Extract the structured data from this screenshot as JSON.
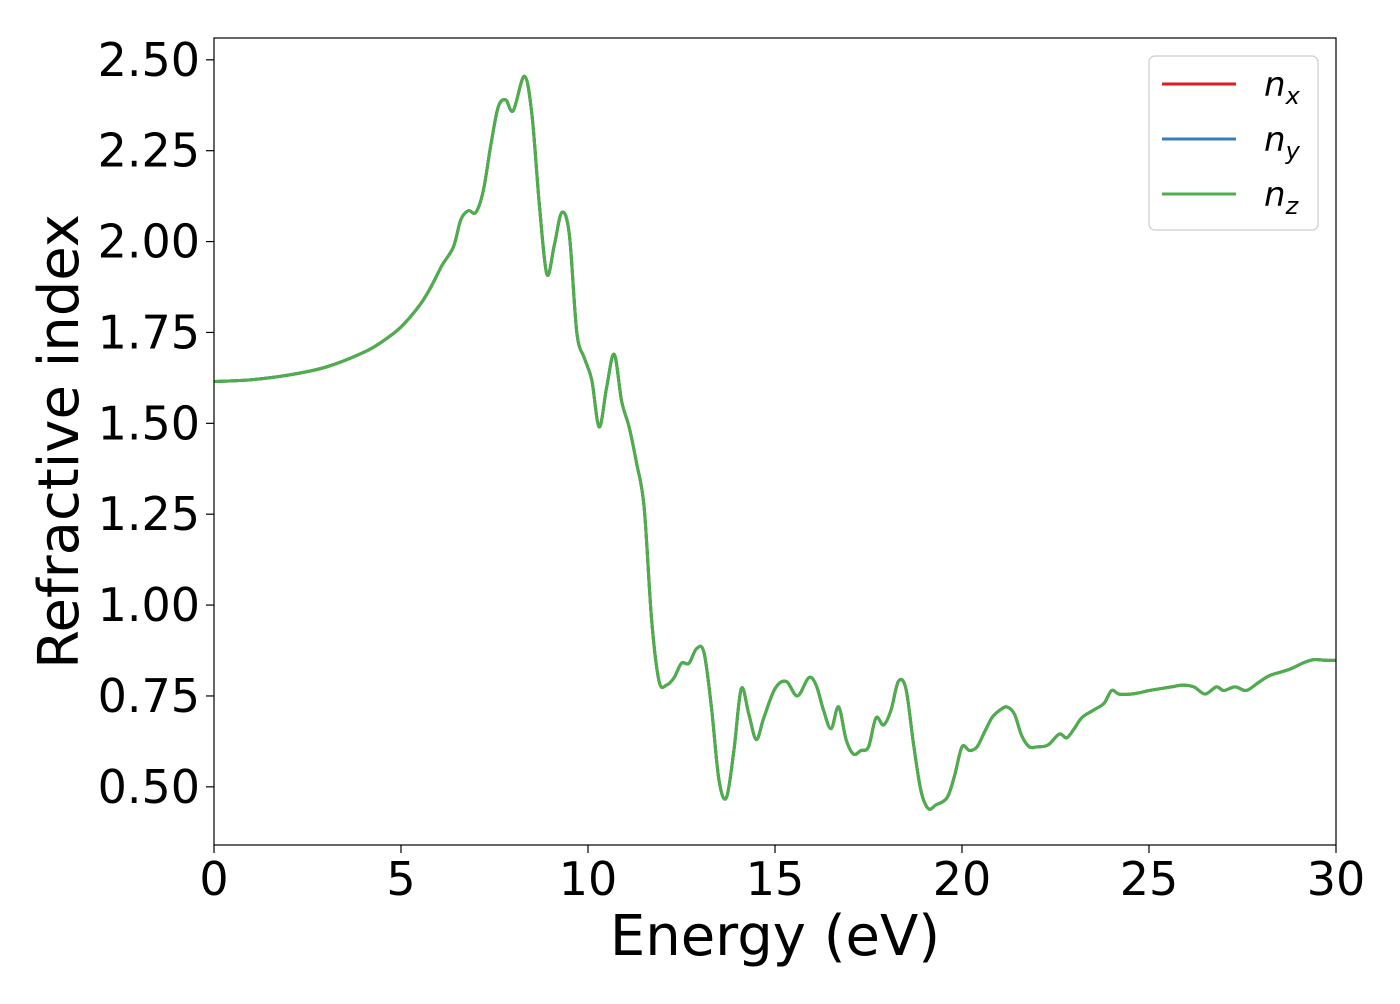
{
  "chart_data": {
    "type": "line",
    "xlabel": "Energy (eV)",
    "ylabel": "Refractive index",
    "xlim": [
      0,
      30
    ],
    "ylim": [
      0.34,
      2.56
    ],
    "x_ticks": [
      0,
      5,
      10,
      15,
      20,
      25,
      30
    ],
    "x_tick_labels": [
      "0",
      "5",
      "10",
      "15",
      "20",
      "25",
      "30"
    ],
    "y_ticks": [
      0.5,
      0.75,
      1.0,
      1.25,
      1.5,
      1.75,
      2.0,
      2.25,
      2.5
    ],
    "y_tick_labels": [
      "0.50",
      "0.75",
      "1.00",
      "1.25",
      "1.50",
      "1.75",
      "2.00",
      "2.25",
      "2.50"
    ],
    "grid": false,
    "legend_position": "top-right",
    "x": [
      0,
      1,
      2,
      3,
      4,
      4.5,
      5,
      5.5,
      5.8,
      6.1,
      6.4,
      6.6,
      6.8,
      7.0,
      7.2,
      7.4,
      7.6,
      7.8,
      8.0,
      8.3,
      8.5,
      8.7,
      8.9,
      9.1,
      9.3,
      9.5,
      9.7,
      9.9,
      10.1,
      10.3,
      10.5,
      10.7,
      10.9,
      11.1,
      11.3,
      11.5,
      11.7,
      11.9,
      12.1,
      12.3,
      12.5,
      12.7,
      12.9,
      13.1,
      13.3,
      13.5,
      13.7,
      13.9,
      14.1,
      14.3,
      14.5,
      14.7,
      15.0,
      15.3,
      15.6,
      15.9,
      16.1,
      16.3,
      16.5,
      16.7,
      16.9,
      17.1,
      17.3,
      17.5,
      17.7,
      17.9,
      18.1,
      18.3,
      18.5,
      18.7,
      18.9,
      19.1,
      19.3,
      19.6,
      19.8,
      20.0,
      20.2,
      20.4,
      20.6,
      20.8,
      21.0,
      21.2,
      21.4,
      21.6,
      21.8,
      22.0,
      22.3,
      22.6,
      22.8,
      23.0,
      23.2,
      23.5,
      23.8,
      24.0,
      24.2,
      24.5,
      24.8,
      25.0,
      25.3,
      25.6,
      25.9,
      26.2,
      26.5,
      26.8,
      27.0,
      27.3,
      27.6,
      27.9,
      28.2,
      28.5,
      28.8,
      29.1,
      29.4,
      29.7,
      30
    ],
    "series": [
      {
        "name": "n_x",
        "color": "#e41a1c",
        "values": [
          1.615,
          1.62,
          1.633,
          1.655,
          1.695,
          1.725,
          1.765,
          1.825,
          1.875,
          1.935,
          1.985,
          2.06,
          2.085,
          2.08,
          2.14,
          2.265,
          2.37,
          2.39,
          2.36,
          2.455,
          2.35,
          2.1,
          1.91,
          1.99,
          2.08,
          2.02,
          1.75,
          1.68,
          1.62,
          1.49,
          1.6,
          1.69,
          1.56,
          1.49,
          1.39,
          1.27,
          0.96,
          0.79,
          0.78,
          0.8,
          0.84,
          0.84,
          0.88,
          0.87,
          0.72,
          0.52,
          0.47,
          0.6,
          0.77,
          0.7,
          0.63,
          0.69,
          0.77,
          0.79,
          0.75,
          0.8,
          0.78,
          0.71,
          0.66,
          0.72,
          0.63,
          0.59,
          0.6,
          0.61,
          0.69,
          0.67,
          0.71,
          0.79,
          0.77,
          0.62,
          0.49,
          0.44,
          0.45,
          0.47,
          0.53,
          0.61,
          0.6,
          0.61,
          0.65,
          0.69,
          0.71,
          0.72,
          0.7,
          0.64,
          0.61,
          0.61,
          0.615,
          0.645,
          0.635,
          0.66,
          0.69,
          0.71,
          0.73,
          0.765,
          0.755,
          0.755,
          0.76,
          0.765,
          0.77,
          0.775,
          0.78,
          0.775,
          0.755,
          0.775,
          0.765,
          0.775,
          0.765,
          0.785,
          0.805,
          0.815,
          0.825,
          0.84,
          0.85,
          0.848,
          0.848
        ]
      },
      {
        "name": "n_y",
        "color": "#377eb8",
        "values": [
          1.615,
          1.62,
          1.633,
          1.655,
          1.695,
          1.725,
          1.765,
          1.825,
          1.875,
          1.935,
          1.985,
          2.06,
          2.085,
          2.08,
          2.14,
          2.265,
          2.37,
          2.39,
          2.36,
          2.455,
          2.35,
          2.1,
          1.91,
          1.99,
          2.08,
          2.02,
          1.75,
          1.68,
          1.62,
          1.49,
          1.6,
          1.69,
          1.56,
          1.49,
          1.39,
          1.27,
          0.96,
          0.79,
          0.78,
          0.8,
          0.84,
          0.84,
          0.88,
          0.87,
          0.72,
          0.52,
          0.47,
          0.6,
          0.77,
          0.7,
          0.63,
          0.69,
          0.77,
          0.79,
          0.75,
          0.8,
          0.78,
          0.71,
          0.66,
          0.72,
          0.63,
          0.59,
          0.6,
          0.61,
          0.69,
          0.67,
          0.71,
          0.79,
          0.77,
          0.62,
          0.49,
          0.44,
          0.45,
          0.47,
          0.53,
          0.61,
          0.6,
          0.61,
          0.65,
          0.69,
          0.71,
          0.72,
          0.7,
          0.64,
          0.61,
          0.61,
          0.615,
          0.645,
          0.635,
          0.66,
          0.69,
          0.71,
          0.73,
          0.765,
          0.755,
          0.755,
          0.76,
          0.765,
          0.77,
          0.775,
          0.78,
          0.775,
          0.755,
          0.775,
          0.765,
          0.775,
          0.765,
          0.785,
          0.805,
          0.815,
          0.825,
          0.84,
          0.85,
          0.848,
          0.848
        ]
      },
      {
        "name": "n_z",
        "color": "#4daf4a",
        "values": [
          1.615,
          1.62,
          1.633,
          1.655,
          1.695,
          1.725,
          1.765,
          1.825,
          1.875,
          1.935,
          1.985,
          2.06,
          2.085,
          2.08,
          2.14,
          2.265,
          2.37,
          2.39,
          2.36,
          2.455,
          2.35,
          2.1,
          1.91,
          1.99,
          2.08,
          2.02,
          1.75,
          1.68,
          1.62,
          1.49,
          1.6,
          1.69,
          1.56,
          1.49,
          1.39,
          1.27,
          0.96,
          0.79,
          0.78,
          0.8,
          0.84,
          0.84,
          0.88,
          0.87,
          0.72,
          0.52,
          0.47,
          0.6,
          0.77,
          0.7,
          0.63,
          0.69,
          0.77,
          0.79,
          0.75,
          0.8,
          0.78,
          0.71,
          0.66,
          0.72,
          0.63,
          0.59,
          0.6,
          0.61,
          0.69,
          0.67,
          0.71,
          0.79,
          0.77,
          0.62,
          0.49,
          0.44,
          0.45,
          0.47,
          0.53,
          0.61,
          0.6,
          0.61,
          0.65,
          0.69,
          0.71,
          0.72,
          0.7,
          0.64,
          0.61,
          0.61,
          0.615,
          0.645,
          0.635,
          0.66,
          0.69,
          0.71,
          0.73,
          0.765,
          0.755,
          0.755,
          0.76,
          0.765,
          0.77,
          0.775,
          0.78,
          0.775,
          0.755,
          0.775,
          0.765,
          0.775,
          0.765,
          0.785,
          0.805,
          0.815,
          0.825,
          0.84,
          0.85,
          0.848,
          0.848
        ]
      }
    ],
    "legend": [
      {
        "base": "n",
        "sub": "x",
        "color": "#e41a1c"
      },
      {
        "base": "n",
        "sub": "y",
        "color": "#377eb8"
      },
      {
        "base": "n",
        "sub": "z",
        "color": "#4daf4a"
      }
    ]
  }
}
